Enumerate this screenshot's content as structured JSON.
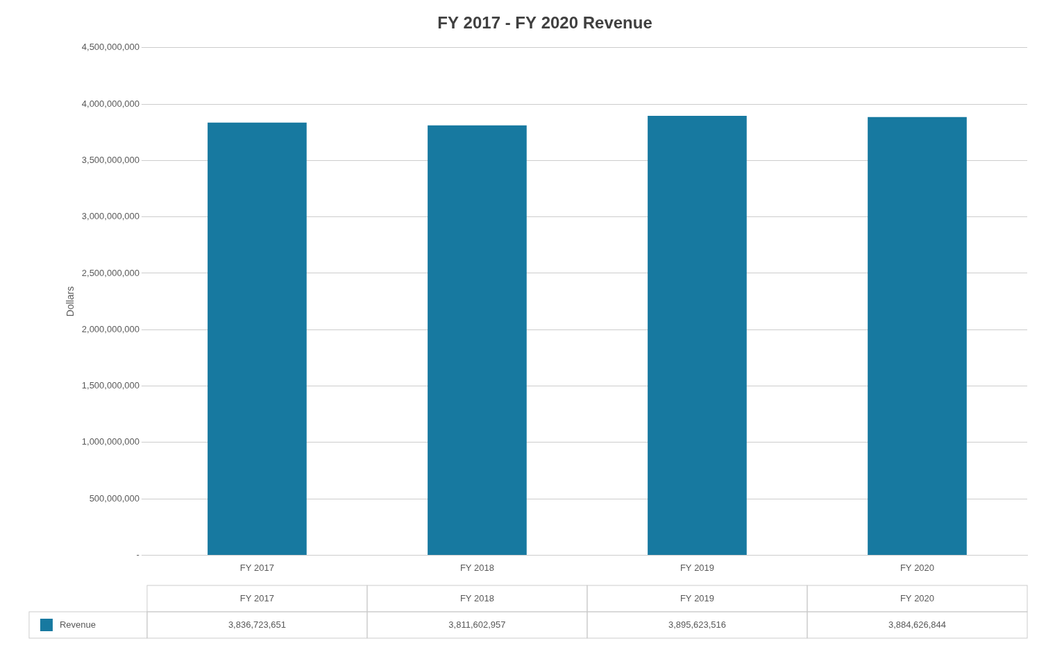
{
  "chart_data": {
    "type": "bar",
    "title": "FY 2017 - FY 2020 Revenue",
    "categories": [
      "FY 2017",
      "FY 2018",
      "FY 2019",
      "FY 2020"
    ],
    "series": [
      {
        "name": "Revenue",
        "color": "#1779a0",
        "values": [
          3836723651,
          3811602957,
          3895623516,
          3884626844
        ],
        "value_labels": [
          "3,836,723,651",
          "3,811,602,957",
          "3,895,623,516",
          "3,884,626,844"
        ]
      }
    ],
    "ylabel": "Dollars",
    "ylim": [
      0,
      4500000000
    ],
    "yticks": [
      {
        "value": 0,
        "label": "-"
      },
      {
        "value": 500000000,
        "label": "500,000,000"
      },
      {
        "value": 1000000000,
        "label": "1,000,000,000"
      },
      {
        "value": 1500000000,
        "label": "1,500,000,000"
      },
      {
        "value": 2000000000,
        "label": "2,000,000,000"
      },
      {
        "value": 2500000000,
        "label": "2,500,000,000"
      },
      {
        "value": 3000000000,
        "label": "3,000,000,000"
      },
      {
        "value": 3500000000,
        "label": "3,500,000,000"
      },
      {
        "value": 4000000000,
        "label": "4,000,000,000"
      },
      {
        "value": 4500000000,
        "label": "4,500,000,000"
      }
    ],
    "grid": true,
    "legend": "bottom"
  }
}
